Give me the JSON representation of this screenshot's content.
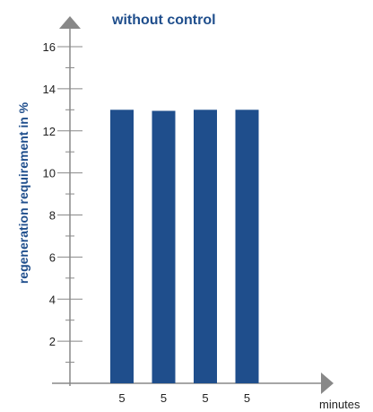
{
  "chart_data": {
    "type": "bar",
    "title": "without control",
    "ylabel": "regeneration requirement in %",
    "xlabel": "minutes",
    "categories": [
      "5",
      "5",
      "5",
      "5"
    ],
    "values": [
      13,
      12.95,
      13,
      13
    ],
    "ylim": [
      0,
      16.5
    ],
    "yticks": [
      2,
      4,
      6,
      8,
      10,
      12,
      14,
      16
    ],
    "grid": false,
    "legend": "none",
    "bar_color": "#1f4e8c",
    "accent_color": "#1f4e8c",
    "axis_color": "#888888"
  }
}
